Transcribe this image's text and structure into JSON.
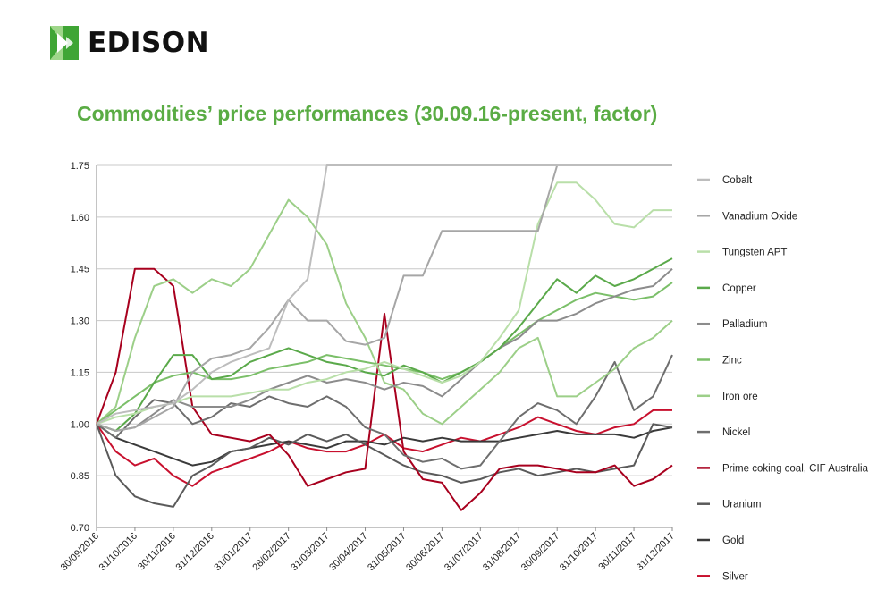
{
  "brand": {
    "name": "EDISON",
    "logo_color_light": "#9fd68a",
    "logo_color_dark": "#3fa535"
  },
  "chart_data": {
    "type": "line",
    "title": "Commodities’ price performances (30.09.16-present, factor)",
    "xlabel": "",
    "ylabel": "",
    "ylim": [
      0.7,
      1.75
    ],
    "yticks": [
      "1.75",
      "1.60",
      "1.45",
      "1.30",
      "1.15",
      "1.00",
      "0.85",
      "0.70"
    ],
    "ytick_values": [
      1.75,
      1.6,
      1.45,
      1.3,
      1.15,
      1.0,
      0.85,
      0.7
    ],
    "x_labels": [
      "30/09/2016",
      "31/10/2016",
      "30/11/2016",
      "31/12/2016",
      "31/01/2017",
      "28/02/2017",
      "31/03/2017",
      "30/04/2017",
      "31/05/2017",
      "30/06/2017",
      "31/07/2017",
      "31/08/2017",
      "30/09/2017",
      "31/10/2017",
      "30/11/2017",
      "31/12/2017"
    ],
    "x_count": 31,
    "grid": true,
    "legend_position": "right",
    "series": [
      {
        "name": "Cobalt",
        "color": "#bdbdbd",
        "values": [
          1.0,
          1.03,
          1.04,
          1.05,
          1.06,
          1.1,
          1.15,
          1.18,
          1.2,
          1.22,
          1.36,
          1.42,
          1.75,
          1.75,
          1.75,
          1.75,
          1.75,
          1.75,
          1.75,
          1.75,
          1.75,
          1.75,
          1.75,
          1.75,
          1.75,
          1.75,
          1.75,
          1.75,
          1.75,
          1.75,
          1.75
        ]
      },
      {
        "name": "Vanadium Oxide",
        "color": "#a6a6a6",
        "values": [
          1.0,
          0.98,
          0.99,
          1.02,
          1.05,
          1.15,
          1.19,
          1.2,
          1.22,
          1.28,
          1.36,
          1.3,
          1.3,
          1.24,
          1.23,
          1.25,
          1.43,
          1.43,
          1.56,
          1.56,
          1.56,
          1.56,
          1.56,
          1.56,
          1.75,
          1.75,
          1.75,
          1.75,
          1.75,
          1.75,
          1.75
        ]
      },
      {
        "name": "Tungsten APT",
        "color": "#b9dfa9",
        "values": [
          1.0,
          1.02,
          1.03,
          1.05,
          1.06,
          1.08,
          1.08,
          1.08,
          1.09,
          1.1,
          1.1,
          1.12,
          1.13,
          1.15,
          1.16,
          1.18,
          1.16,
          1.14,
          1.12,
          1.14,
          1.18,
          1.25,
          1.33,
          1.58,
          1.7,
          1.7,
          1.65,
          1.58,
          1.57,
          1.62,
          1.62
        ]
      },
      {
        "name": "Copper",
        "color": "#5aa94a",
        "values": [
          1.0,
          0.98,
          1.03,
          1.12,
          1.2,
          1.2,
          1.13,
          1.14,
          1.18,
          1.2,
          1.22,
          1.2,
          1.18,
          1.17,
          1.15,
          1.14,
          1.17,
          1.15,
          1.12,
          1.15,
          1.18,
          1.22,
          1.28,
          1.35,
          1.42,
          1.38,
          1.43,
          1.4,
          1.42,
          1.45,
          1.48
        ]
      },
      {
        "name": "Palladium",
        "color": "#8c8c8c",
        "values": [
          1.0,
          0.98,
          0.99,
          1.03,
          1.07,
          1.05,
          1.05,
          1.05,
          1.07,
          1.1,
          1.12,
          1.14,
          1.12,
          1.13,
          1.12,
          1.1,
          1.12,
          1.11,
          1.08,
          1.13,
          1.18,
          1.22,
          1.25,
          1.3,
          1.3,
          1.32,
          1.35,
          1.37,
          1.39,
          1.4,
          1.45
        ]
      },
      {
        "name": "Zinc",
        "color": "#7bbf69",
        "values": [
          1.0,
          1.04,
          1.08,
          1.12,
          1.14,
          1.15,
          1.13,
          1.13,
          1.14,
          1.16,
          1.17,
          1.18,
          1.2,
          1.19,
          1.18,
          1.17,
          1.16,
          1.15,
          1.13,
          1.15,
          1.18,
          1.22,
          1.26,
          1.3,
          1.33,
          1.36,
          1.38,
          1.37,
          1.36,
          1.37,
          1.41
        ]
      },
      {
        "name": "Iron ore",
        "color": "#9ccf88",
        "values": [
          1.0,
          1.05,
          1.25,
          1.4,
          1.42,
          1.38,
          1.42,
          1.4,
          1.45,
          1.55,
          1.65,
          1.6,
          1.52,
          1.35,
          1.25,
          1.12,
          1.1,
          1.03,
          1.0,
          1.05,
          1.1,
          1.15,
          1.22,
          1.25,
          1.08,
          1.08,
          1.12,
          1.16,
          1.22,
          1.25,
          1.3
        ]
      },
      {
        "name": "Nickel",
        "color": "#6e6e6e",
        "values": [
          1.0,
          0.96,
          1.02,
          1.07,
          1.06,
          1.0,
          1.02,
          1.06,
          1.05,
          1.08,
          1.06,
          1.05,
          1.08,
          1.05,
          0.99,
          0.97,
          0.91,
          0.89,
          0.9,
          0.87,
          0.88,
          0.95,
          1.02,
          1.06,
          1.04,
          1.0,
          1.08,
          1.18,
          1.04,
          1.08,
          1.2
        ]
      },
      {
        "name": "Prime coking coal, CIF Australia",
        "color": "#a8001e",
        "values": [
          1.0,
          1.15,
          1.45,
          1.45,
          1.4,
          1.05,
          0.97,
          0.96,
          0.95,
          0.97,
          0.91,
          0.82,
          0.84,
          0.86,
          0.87,
          1.32,
          0.92,
          0.84,
          0.83,
          0.75,
          0.8,
          0.87,
          0.88,
          0.88,
          0.87,
          0.86,
          0.86,
          0.88,
          0.82,
          0.84,
          0.88
        ]
      },
      {
        "name": "Uranium",
        "color": "#5a5a5a",
        "values": [
          1.0,
          0.85,
          0.79,
          0.77,
          0.76,
          0.85,
          0.88,
          0.92,
          0.93,
          0.96,
          0.94,
          0.97,
          0.95,
          0.97,
          0.94,
          0.91,
          0.88,
          0.86,
          0.85,
          0.83,
          0.84,
          0.86,
          0.87,
          0.85,
          0.86,
          0.87,
          0.86,
          0.87,
          0.88,
          1.0,
          0.99
        ]
      },
      {
        "name": "Gold",
        "color": "#3a3a3a",
        "values": [
          1.0,
          0.96,
          0.94,
          0.92,
          0.9,
          0.88,
          0.89,
          0.92,
          0.93,
          0.94,
          0.95,
          0.94,
          0.93,
          0.95,
          0.95,
          0.94,
          0.96,
          0.95,
          0.96,
          0.95,
          0.95,
          0.95,
          0.96,
          0.97,
          0.98,
          0.97,
          0.97,
          0.97,
          0.96,
          0.98,
          0.99
        ]
      },
      {
        "name": "Silver",
        "color": "#c8102e",
        "values": [
          1.0,
          0.92,
          0.88,
          0.9,
          0.85,
          0.82,
          0.86,
          0.88,
          0.9,
          0.92,
          0.95,
          0.93,
          0.92,
          0.92,
          0.94,
          0.97,
          0.93,
          0.92,
          0.94,
          0.96,
          0.95,
          0.97,
          0.99,
          1.02,
          1.0,
          0.98,
          0.97,
          0.99,
          1.0,
          1.04,
          1.04
        ]
      }
    ]
  }
}
